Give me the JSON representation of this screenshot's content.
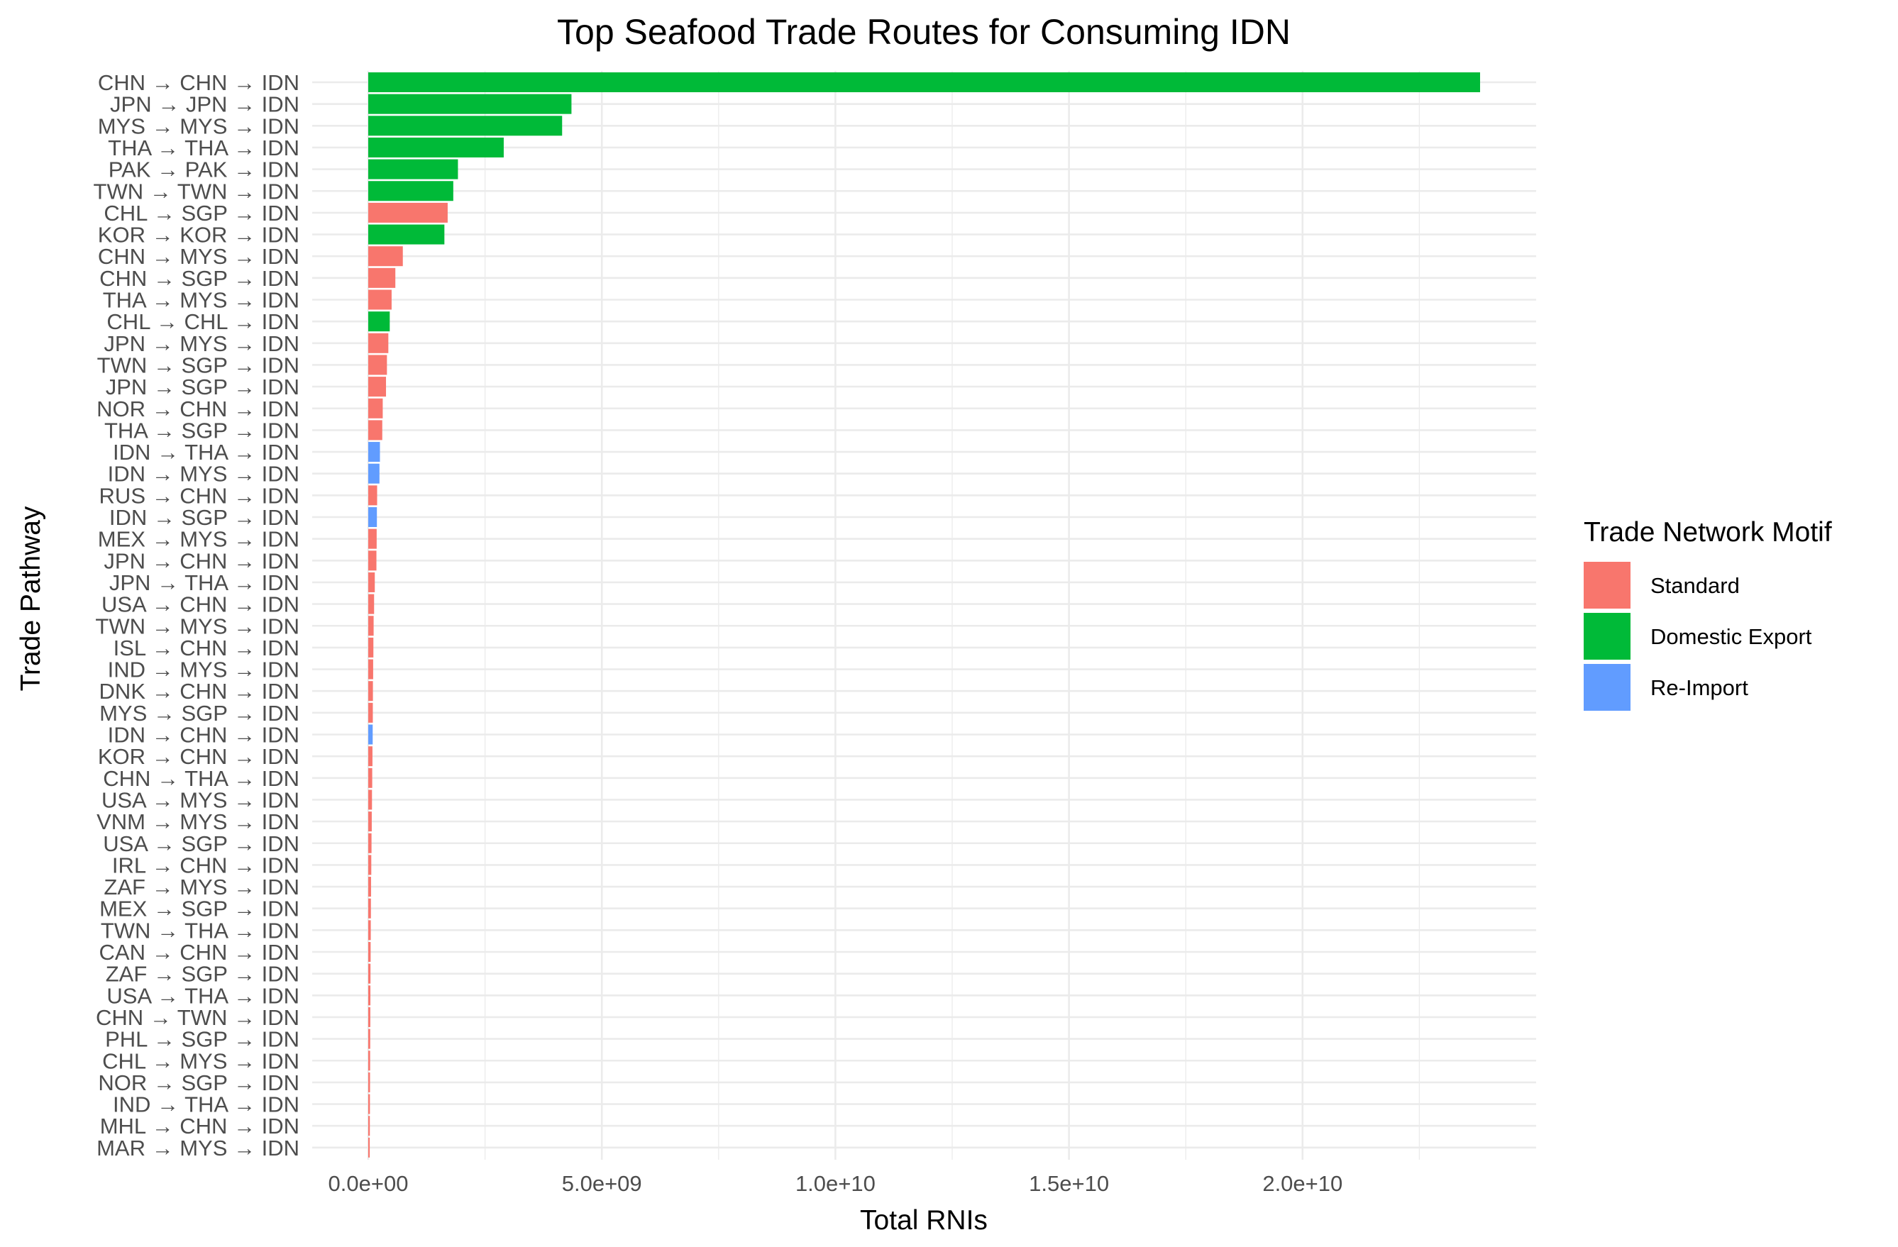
{
  "chart_data": {
    "type": "bar",
    "orientation": "horizontal",
    "title": "Top Seafood Trade Routes for Consuming IDN",
    "xlabel": "Total RNIs",
    "ylabel": "Trade Pathway",
    "xlim": [
      -1200000000.0,
      25000000000.0
    ],
    "x_ticks": [
      {
        "value": 0,
        "label": "0.0e+00"
      },
      {
        "value": 5000000000.0,
        "label": "5.0e+09"
      },
      {
        "value": 10000000000.0,
        "label": "1.0e+10"
      },
      {
        "value": 15000000000.0,
        "label": "1.5e+10"
      },
      {
        "value": 20000000000.0,
        "label": "2.0e+10"
      }
    ],
    "x_minor_ticks": [
      2500000000.0,
      7500000000.0,
      12500000000.0,
      17500000000.0,
      22500000000.0
    ],
    "grid": true,
    "legend": {
      "title": "Trade Network Motif",
      "position": "right",
      "items": [
        {
          "name": "Standard",
          "color": "#F8766D"
        },
        {
          "name": "Domestic Export",
          "color": "#00BA38"
        },
        {
          "name": "Re-Import",
          "color": "#619CFF"
        }
      ]
    },
    "bars": [
      {
        "label": "CHN → CHN → IDN",
        "value": 23800000000,
        "motif": "Domestic Export"
      },
      {
        "label": "JPN → JPN → IDN",
        "value": 4350000000,
        "motif": "Domestic Export"
      },
      {
        "label": "MYS → MYS → IDN",
        "value": 4150000000,
        "motif": "Domestic Export"
      },
      {
        "label": "THA → THA → IDN",
        "value": 2900000000,
        "motif": "Domestic Export"
      },
      {
        "label": "PAK → PAK → IDN",
        "value": 1920000000,
        "motif": "Domestic Export"
      },
      {
        "label": "TWN → TWN → IDN",
        "value": 1820000000,
        "motif": "Domestic Export"
      },
      {
        "label": "CHL → SGP → IDN",
        "value": 1700000000,
        "motif": "Standard"
      },
      {
        "label": "KOR → KOR → IDN",
        "value": 1630000000,
        "motif": "Domestic Export"
      },
      {
        "label": "CHN → MYS → IDN",
        "value": 740000000,
        "motif": "Standard"
      },
      {
        "label": "CHN → SGP → IDN",
        "value": 580000000,
        "motif": "Standard"
      },
      {
        "label": "THA → MYS → IDN",
        "value": 500000000,
        "motif": "Standard"
      },
      {
        "label": "CHL → CHL → IDN",
        "value": 460000000,
        "motif": "Domestic Export"
      },
      {
        "label": "JPN → MYS → IDN",
        "value": 430000000,
        "motif": "Standard"
      },
      {
        "label": "TWN → SGP → IDN",
        "value": 400000000,
        "motif": "Standard"
      },
      {
        "label": "JPN → SGP → IDN",
        "value": 380000000,
        "motif": "Standard"
      },
      {
        "label": "NOR → CHN → IDN",
        "value": 310000000,
        "motif": "Standard"
      },
      {
        "label": "THA → SGP → IDN",
        "value": 300000000,
        "motif": "Standard"
      },
      {
        "label": "IDN → THA → IDN",
        "value": 250000000,
        "motif": "Re-Import"
      },
      {
        "label": "IDN → MYS → IDN",
        "value": 240000000,
        "motif": "Re-Import"
      },
      {
        "label": "RUS → CHN → IDN",
        "value": 190000000,
        "motif": "Standard"
      },
      {
        "label": "IDN → SGP → IDN",
        "value": 185000000,
        "motif": "Re-Import"
      },
      {
        "label": "MEX → MYS → IDN",
        "value": 180000000,
        "motif": "Standard"
      },
      {
        "label": "JPN → CHN → IDN",
        "value": 175000000,
        "motif": "Standard"
      },
      {
        "label": "JPN → THA → IDN",
        "value": 140000000,
        "motif": "Standard"
      },
      {
        "label": "USA → CHN → IDN",
        "value": 125000000,
        "motif": "Standard"
      },
      {
        "label": "TWN → MYS → IDN",
        "value": 115000000,
        "motif": "Standard"
      },
      {
        "label": "ISL → CHN → IDN",
        "value": 110000000,
        "motif": "Standard"
      },
      {
        "label": "IND → MYS → IDN",
        "value": 105000000,
        "motif": "Standard"
      },
      {
        "label": "DNK → CHN → IDN",
        "value": 100000000,
        "motif": "Standard"
      },
      {
        "label": "MYS → SGP → IDN",
        "value": 98000000,
        "motif": "Standard"
      },
      {
        "label": "IDN → CHN → IDN",
        "value": 95000000,
        "motif": "Re-Import"
      },
      {
        "label": "KOR → CHN → IDN",
        "value": 90000000,
        "motif": "Standard"
      },
      {
        "label": "CHN → THA → IDN",
        "value": 85000000,
        "motif": "Standard"
      },
      {
        "label": "USA → MYS → IDN",
        "value": 80000000,
        "motif": "Standard"
      },
      {
        "label": "VNM → MYS → IDN",
        "value": 75000000,
        "motif": "Standard"
      },
      {
        "label": "USA → SGP → IDN",
        "value": 70000000,
        "motif": "Standard"
      },
      {
        "label": "IRL → CHN → IDN",
        "value": 65000000,
        "motif": "Standard"
      },
      {
        "label": "ZAF → MYS → IDN",
        "value": 60000000,
        "motif": "Standard"
      },
      {
        "label": "MEX → SGP → IDN",
        "value": 57000000,
        "motif": "Standard"
      },
      {
        "label": "TWN → THA → IDN",
        "value": 54000000,
        "motif": "Standard"
      },
      {
        "label": "CAN → CHN → IDN",
        "value": 51000000,
        "motif": "Standard"
      },
      {
        "label": "ZAF → SGP → IDN",
        "value": 48000000,
        "motif": "Standard"
      },
      {
        "label": "USA → THA → IDN",
        "value": 46000000,
        "motif": "Standard"
      },
      {
        "label": "CHN → TWN → IDN",
        "value": 44000000,
        "motif": "Standard"
      },
      {
        "label": "PHL → SGP → IDN",
        "value": 42000000,
        "motif": "Standard"
      },
      {
        "label": "CHL → MYS → IDN",
        "value": 40000000,
        "motif": "Standard"
      },
      {
        "label": "NOR → SGP → IDN",
        "value": 38000000,
        "motif": "Standard"
      },
      {
        "label": "IND → THA → IDN",
        "value": 36000000,
        "motif": "Standard"
      },
      {
        "label": "MHL → CHN → IDN",
        "value": 34000000,
        "motif": "Standard"
      },
      {
        "label": "MAR → MYS → IDN",
        "value": 32000000,
        "motif": "Standard"
      }
    ]
  }
}
